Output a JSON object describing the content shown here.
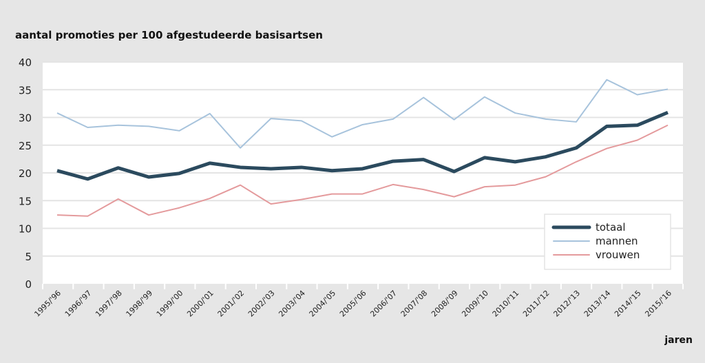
{
  "chart_data": {
    "type": "line",
    "title": "aantal promoties per 100 afgestudeerde basisartsen",
    "xlabel": "jaren",
    "ylabel": "",
    "ylim": [
      0,
      40
    ],
    "yticks": [
      0,
      5,
      10,
      15,
      20,
      25,
      30,
      35,
      40
    ],
    "grid": true,
    "legend": "bottom-right",
    "categories": [
      "1995/'96",
      "1996/'97",
      "1997/'98",
      "1998/'99",
      "1999/'00",
      "2000/'01",
      "2001/'02",
      "2002/'03",
      "2003/'04",
      "2004/'05",
      "2005/'06",
      "2006/'07",
      "2007/'08",
      "2008/'09",
      "2009/'10",
      "2010/'11",
      "2011/'12",
      "2012/'13",
      "2013/'14",
      "2014/'15",
      "2015/'16"
    ],
    "series": [
      {
        "name": "totaal",
        "color": "#2b4a5e",
        "values": [
          20.4,
          18.9,
          20.9,
          19.25,
          19.9,
          21.75,
          21.0,
          20.75,
          21.0,
          20.4,
          20.75,
          22.1,
          22.4,
          20.25,
          22.75,
          22.0,
          22.9,
          24.5,
          28.4,
          28.6,
          30.9
        ]
      },
      {
        "name": "mannen",
        "color": "#a7c3dc",
        "values": [
          30.8,
          28.2,
          28.6,
          28.4,
          27.6,
          30.7,
          24.5,
          29.8,
          29.4,
          26.5,
          28.7,
          29.7,
          33.6,
          29.6,
          33.7,
          30.8,
          29.7,
          29.2,
          36.8,
          34.1,
          35.1
        ]
      },
      {
        "name": "vrouwen",
        "color": "#e49a9c",
        "values": [
          12.4,
          12.2,
          15.3,
          12.4,
          13.7,
          15.4,
          17.8,
          14.4,
          15.2,
          16.2,
          16.2,
          17.9,
          17.0,
          15.7,
          17.5,
          17.8,
          19.3,
          22.0,
          24.4,
          25.9,
          28.6
        ]
      }
    ]
  }
}
